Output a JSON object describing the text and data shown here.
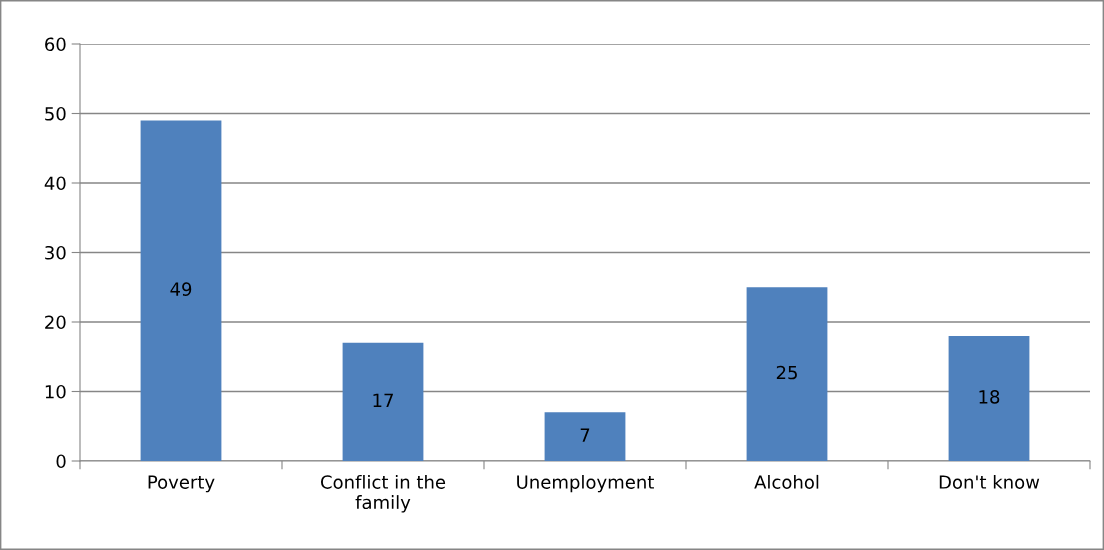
{
  "chart_data": {
    "type": "bar",
    "categories": [
      "Poverty",
      "Conflict in the family",
      "Unemployment",
      "Alcohol",
      "Don't know"
    ],
    "values": [
      49,
      17,
      7,
      25,
      18
    ],
    "color": "#4f81bd",
    "ylim": [
      0,
      60
    ],
    "yticks": [
      0,
      10,
      20,
      30,
      40,
      50,
      60
    ],
    "grid": "y",
    "data_labels": true
  }
}
